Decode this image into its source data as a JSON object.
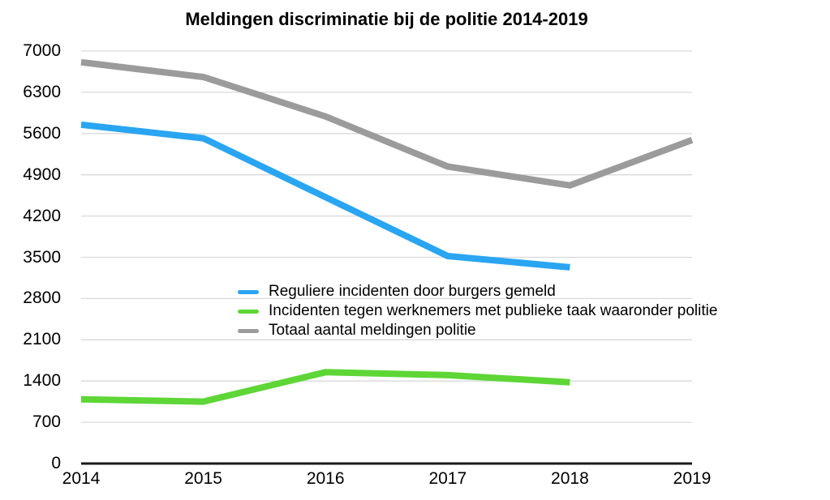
{
  "title": "Meldingen discriminatie bij de politie 2014-2019",
  "colors": {
    "background": "#ffffff",
    "grid": "#d9d9d9",
    "axis": "#1a1a1a",
    "text": "#000000",
    "series_blue": "#29a5f2",
    "series_green": "#5ed636",
    "series_gray": "#9b9b9b"
  },
  "chart_data": {
    "type": "line",
    "title": "Meldingen discriminatie bij de politie 2014-2019",
    "x": [
      "2014",
      "2015",
      "2016",
      "2017",
      "2018",
      "2019"
    ],
    "series": [
      {
        "name": "Reguliere incidenten door burgers gemeld",
        "color": "#29a5f2",
        "values": [
          5750,
          5520,
          4520,
          3520,
          3330,
          null
        ]
      },
      {
        "name": "Incidenten tegen werknemers met publieke taak waaronder politie",
        "color": "#5ed636",
        "values": [
          1090,
          1050,
          1550,
          1500,
          1380,
          null
        ]
      },
      {
        "name": "Totaal aantal meldingen politie",
        "color": "#9b9b9b",
        "values": [
          6810,
          6560,
          5890,
          5040,
          4720,
          5490
        ]
      }
    ],
    "ylim": [
      0,
      7000
    ],
    "yticks": [
      0,
      700,
      1400,
      2100,
      2800,
      3500,
      4200,
      4900,
      5600,
      6300,
      7000
    ],
    "grid": true,
    "line_width": 8,
    "legend_position": "overlay-center-left"
  }
}
